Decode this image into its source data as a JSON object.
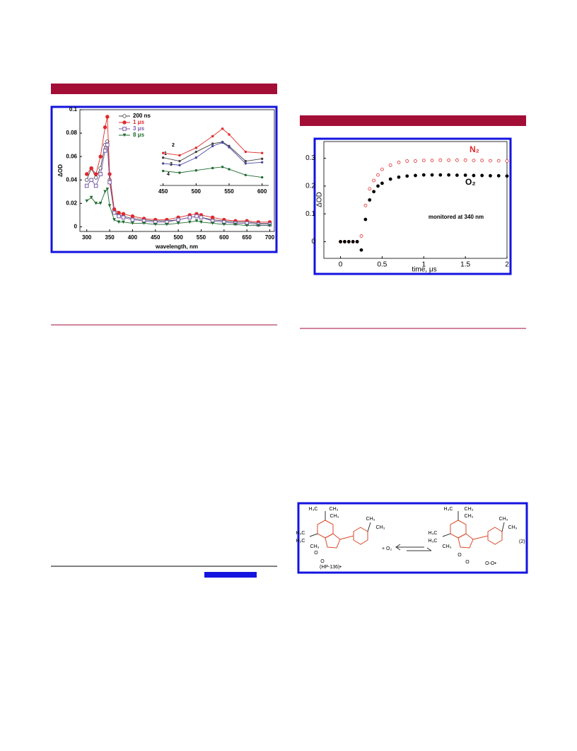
{
  "chart_data": [
    {
      "type": "line",
      "x_label": "wavelength, nm",
      "y_label": "ΔOD",
      "x": [
        300,
        310,
        320,
        330,
        340,
        345,
        350,
        360,
        370,
        380,
        400,
        425,
        450,
        475,
        500,
        525,
        540,
        550,
        575,
        600,
        625,
        650,
        675,
        700
      ],
      "xlim": [
        285,
        710
      ],
      "xticks": [
        300,
        350,
        400,
        450,
        500,
        550,
        600,
        650,
        700
      ],
      "ylim": [
        -0.004,
        0.1
      ],
      "yticks": [
        0,
        0.02,
        0.04,
        0.06,
        0.08,
        0.1
      ],
      "series": [
        {
          "name": "200 ns",
          "color": "#444444",
          "marker": "circle-open",
          "values": [
            0.04,
            0.05,
            0.042,
            0.05,
            0.07,
            0.073,
            0.04,
            0.013,
            0.01,
            0.009,
            0.007,
            0.006,
            0.005,
            0.005,
            0.006,
            0.008,
            0.009,
            0.008,
            0.006,
            0.005,
            0.004,
            0.004,
            0.003,
            0.003
          ]
        },
        {
          "name": "1 μs",
          "color": "#e0282a",
          "marker": "circle",
          "values": [
            0.045,
            0.05,
            0.045,
            0.06,
            0.085,
            0.094,
            0.045,
            0.015,
            0.012,
            0.011,
            0.009,
            0.007,
            0.006,
            0.006,
            0.008,
            0.01,
            0.011,
            0.01,
            0.008,
            0.006,
            0.005,
            0.005,
            0.004,
            0.004
          ]
        },
        {
          "name": "3 μs",
          "color": "#7a5aa8",
          "marker": "square-open",
          "values": [
            0.035,
            0.04,
            0.035,
            0.045,
            0.065,
            0.07,
            0.038,
            0.012,
            0.009,
            0.008,
            0.006,
            0.005,
            0.004,
            0.004,
            0.006,
            0.008,
            0.009,
            0.008,
            0.005,
            0.004,
            0.003,
            0.003,
            0.002,
            0.002
          ]
        },
        {
          "name": "8 μs",
          "color": "#1f6b30",
          "marker": "triangle",
          "values": [
            0.022,
            0.025,
            0.02,
            0.02,
            0.03,
            0.032,
            0.018,
            0.006,
            0.004,
            0.004,
            0.003,
            0.003,
            0.002,
            0.002,
            0.003,
            0.004,
            0.005,
            0.004,
            0.003,
            0.002,
            0.002,
            0.001,
            0.001,
            0.001
          ]
        }
      ]
    },
    {
      "type": "line",
      "x": [
        450,
        475,
        500,
        525,
        540,
        550,
        575,
        600
      ],
      "xlim": [
        445,
        610
      ],
      "xticks": [
        450,
        500,
        550,
        600
      ],
      "ylim": [
        0.001,
        0.012
      ],
      "series": [
        {
          "name": "1",
          "color": "#444444",
          "values": [
            0.0058,
            0.0052,
            0.0068,
            0.0082,
            0.0085,
            0.0078,
            0.0052,
            0.0056
          ]
        },
        {
          "name": "2",
          "color": "#e0282a",
          "values": [
            0.0066,
            0.0062,
            0.0075,
            0.0095,
            0.0108,
            0.0098,
            0.0068,
            0.0066
          ]
        },
        {
          "name": "3",
          "color": "#4a4aa0",
          "values": [
            0.0048,
            0.0045,
            0.0058,
            0.0078,
            0.0084,
            0.0076,
            0.0048,
            0.005
          ]
        },
        {
          "name": "4",
          "color": "#1f6b30",
          "values": [
            0.0035,
            0.0032,
            0.0036,
            0.004,
            0.0042,
            0.0038,
            0.0028,
            0.0024
          ]
        }
      ]
    },
    {
      "type": "scatter",
      "x_label": "time, μs",
      "y_label": "ΔOD",
      "annotation": "monitored at 340 nm",
      "x": [
        0,
        0.05,
        0.1,
        0.15,
        0.2,
        0.25,
        0.3,
        0.35,
        0.4,
        0.45,
        0.5,
        0.6,
        0.7,
        0.8,
        0.9,
        1,
        1.1,
        1.2,
        1.3,
        1.4,
        1.5,
        1.6,
        1.7,
        1.8,
        1.9,
        2
      ],
      "xlim": [
        -0.2,
        2
      ],
      "xticks": [
        0,
        0.5,
        1,
        1.5,
        2
      ],
      "ylim": [
        -0.06,
        0.36
      ],
      "yticks": [
        0,
        0.1,
        0.2,
        0.3
      ],
      "series": [
        {
          "name": "N₂",
          "color": "#e0282a",
          "marker": "circle-open",
          "values": [
            0,
            0,
            0,
            0,
            0,
            0.02,
            0.13,
            0.19,
            0.22,
            0.24,
            0.26,
            0.275,
            0.285,
            0.29,
            0.29,
            0.292,
            0.292,
            0.293,
            0.293,
            0.293,
            0.293,
            0.292,
            0.292,
            0.291,
            0.291,
            0.29
          ]
        },
        {
          "name": "O₂",
          "color": "#000000",
          "marker": "circle",
          "values": [
            0,
            0,
            0,
            0,
            0,
            -0.03,
            0.08,
            0.15,
            0.18,
            0.2,
            0.21,
            0.225,
            0.232,
            0.236,
            0.238,
            0.24,
            0.24,
            0.24,
            0.24,
            0.239,
            0.239,
            0.238,
            0.238,
            0.237,
            0.237,
            0.236
          ]
        }
      ]
    }
  ],
  "scheme": {
    "labels": [
      "H₃C",
      "CH₃",
      "CH₃",
      "H₃C",
      "H₃C",
      "CH₃",
      "O",
      "O",
      "CH₃",
      "CH₃",
      "H₃C",
      "CH₃",
      "CH₃",
      "H₃C",
      "H₃C",
      "CH₃",
      "O",
      "O",
      "O-O•",
      "CH₃",
      "CH₃"
    ],
    "reagent": "+ O₂",
    "equation_number": "(2)",
    "compound": "(HP-136)•"
  }
}
